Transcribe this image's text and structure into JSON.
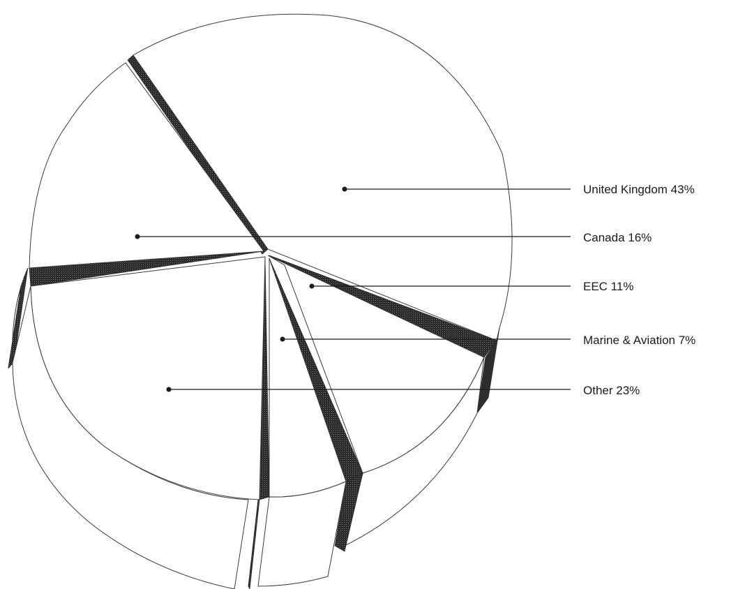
{
  "chart_data": {
    "type": "pie",
    "title": "",
    "style": "3d-exploded",
    "slices": [
      {
        "label": "United Kingdom 43%",
        "category": "United Kingdom",
        "value": 43
      },
      {
        "label": "Canada 16%",
        "category": "Canada",
        "value": 16
      },
      {
        "label": "EEC 11%",
        "category": "EEC",
        "value": 11
      },
      {
        "label": "Marine & Aviation 7%",
        "category": "Marine & Aviation",
        "value": 7
      },
      {
        "label": "Other 23%",
        "category": "Other",
        "value": 23
      }
    ],
    "legend_position": "right",
    "colors": {
      "face": "#ffffff",
      "outline": "#3a3a3a",
      "side": "#2e2e2e",
      "text": "#1a1a1a"
    }
  }
}
